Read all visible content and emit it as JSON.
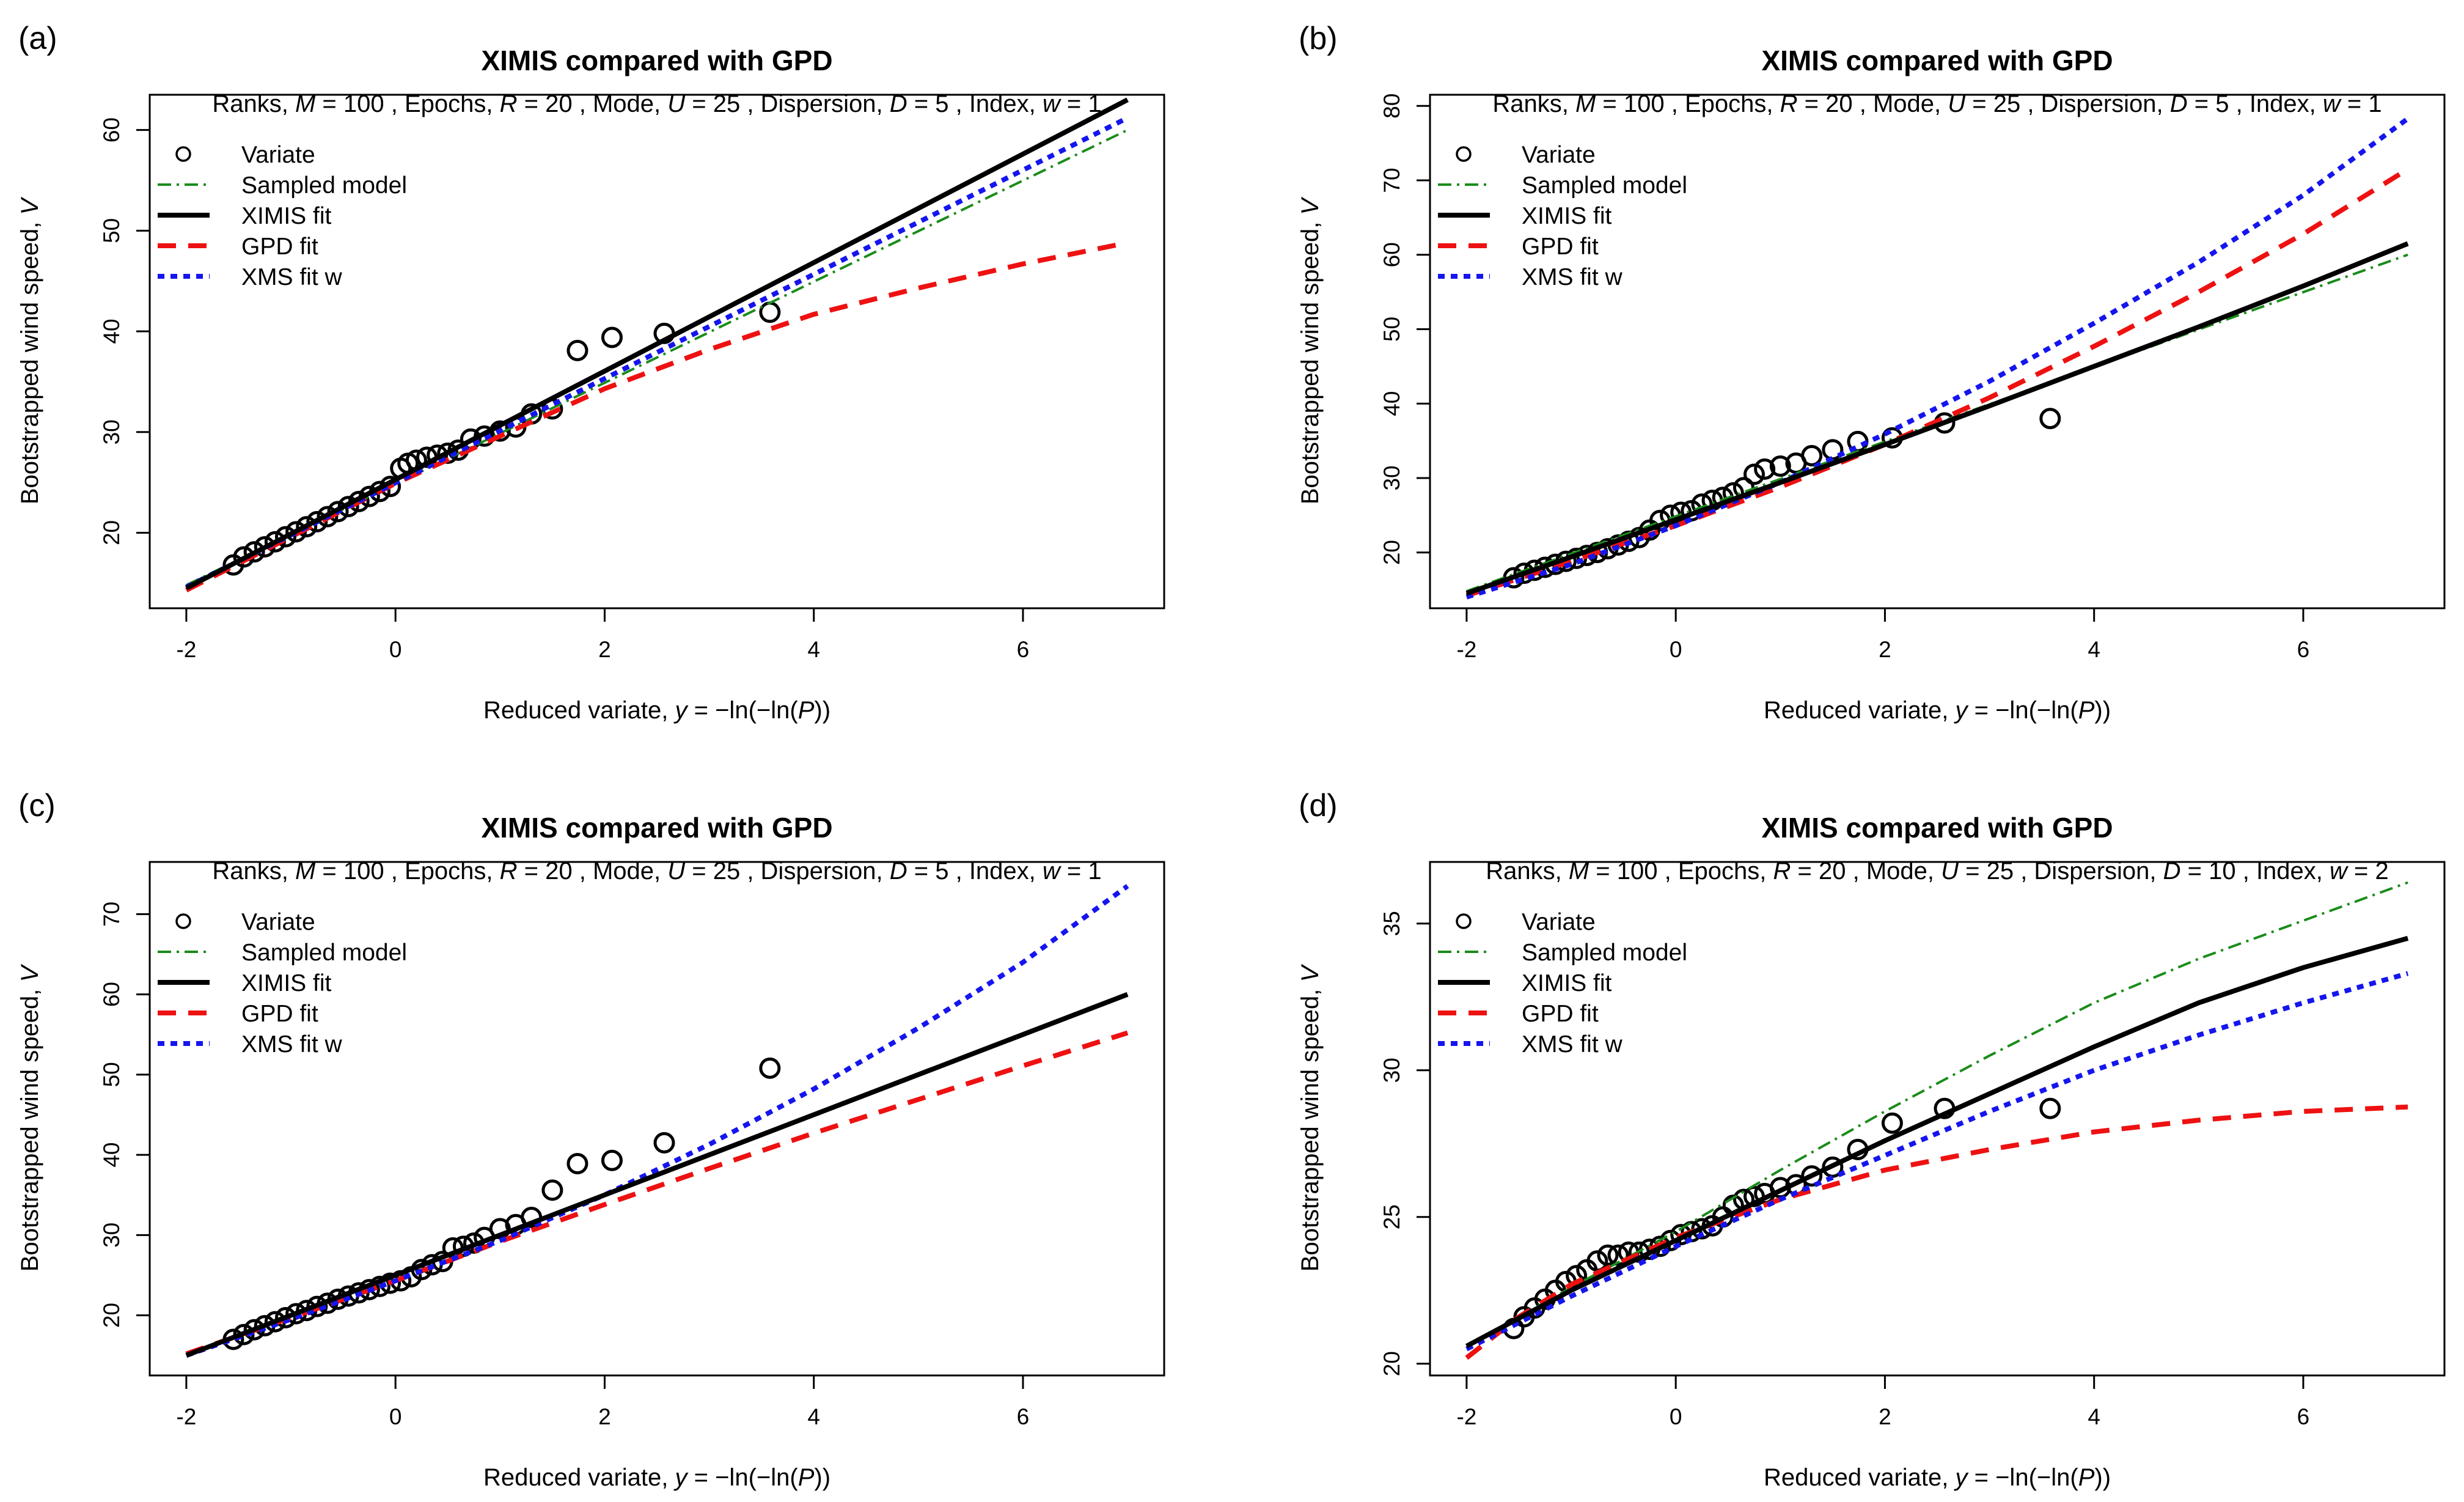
{
  "colors": {
    "variate": "#000000",
    "sampled_model": "#1a8c1a",
    "ximis_fit": "#000000",
    "gpd_fit": "#ee1111",
    "xms_fit": "#1515ee"
  },
  "chart_data": [
    {
      "type": "line",
      "panel_label": "(a)",
      "title": "XIMIS compared with GPD",
      "subtitle": {
        "ranks": "Ranks,",
        "M": "M",
        "M_value": "= 100 ,",
        "epochs": "Epochs,",
        "R": "R",
        "R_value": "= 20 ,",
        "mode": "Mode,",
        "U": "U",
        "U_value": "= 25 ,",
        "dispersion": "Dispersion,",
        "D": "D",
        "D_value": "= 5 ,",
        "index": "Index,",
        "w": "w",
        "w_value": "= 1"
      },
      "xlabel": {
        "prefix": "Reduced variate,",
        "var": "y",
        "eq": " = −ln(−ln(",
        "P": "P",
        "suffix": "))"
      },
      "ylabel": {
        "prefix": "Bootstrapped wind speed,",
        "var": "V"
      },
      "xlim": [
        -2.35,
        7.35
      ],
      "ylim": [
        12.5,
        63.5
      ],
      "xticks": [
        -2,
        0,
        2,
        4,
        6
      ],
      "yticks": [
        20,
        30,
        40,
        50,
        60
      ],
      "legend": [
        "Variate",
        "Sampled model",
        "XIMIS fit",
        "GPD fit",
        "XMS fit w"
      ],
      "series": [
        {
          "name": "Sampled model",
          "x": [
            -2,
            7
          ],
          "y": [
            14.8,
            60
          ]
        },
        {
          "name": "XIMIS fit",
          "x": [
            -2,
            7
          ],
          "y": [
            14.5,
            63
          ]
        },
        {
          "name": "GPD fit",
          "x": [
            -2,
            -1,
            0,
            1,
            2,
            3,
            4,
            5,
            6,
            7
          ],
          "y": [
            14.3,
            19.6,
            24.9,
            29.6,
            34.3,
            38.2,
            41.7,
            44.3,
            46.7,
            48.8
          ]
        },
        {
          "name": "XMS fit w",
          "x": [
            -2,
            7
          ],
          "y": [
            14.6,
            61.2
          ]
        }
      ],
      "points": {
        "name": "Variate",
        "x": [
          -1.55,
          -1.45,
          -1.35,
          -1.25,
          -1.15,
          -1.05,
          -0.95,
          -0.85,
          -0.75,
          -0.65,
          -0.55,
          -0.45,
          -0.35,
          -0.25,
          -0.15,
          -0.05,
          0.05,
          0.12,
          0.2,
          0.3,
          0.4,
          0.5,
          0.6,
          0.72,
          0.85,
          1.0,
          1.15,
          1.3,
          1.5,
          1.74,
          2.07,
          2.57,
          3.58
        ],
        "y": [
          16.8,
          17.6,
          18.1,
          18.6,
          19.1,
          19.6,
          20.1,
          20.6,
          21.1,
          21.6,
          22.1,
          22.6,
          23.1,
          23.6,
          24.1,
          24.6,
          26.4,
          26.9,
          27.2,
          27.5,
          27.7,
          27.9,
          28.2,
          29.3,
          29.6,
          30.1,
          30.5,
          31.8,
          32.3,
          38.1,
          39.4,
          39.8,
          41.9
        ]
      }
    },
    {
      "type": "line",
      "panel_label": "(b)",
      "title": "XIMIS compared with GPD",
      "subtitle": {
        "ranks": "Ranks,",
        "M": "M",
        "M_value": "= 100 ,",
        "epochs": "Epochs,",
        "R": "R",
        "R_value": "= 20 ,",
        "mode": "Mode,",
        "U": "U",
        "U_value": "= 25 ,",
        "dispersion": "Dispersion,",
        "D": "D",
        "D_value": "= 5 ,",
        "index": "Index,",
        "w": "w",
        "w_value": "= 1"
      },
      "xlabel": {
        "prefix": "Reduced variate,",
        "var": "y",
        "eq": " = −ln(−ln(",
        "P": "P",
        "suffix": "))"
      },
      "ylabel": {
        "prefix": "Bootstrapped wind speed,",
        "var": "V"
      },
      "xlim": [
        -2.35,
        7.35
      ],
      "ylim": [
        12.5,
        81.5
      ],
      "xticks": [
        -2,
        0,
        2,
        4,
        6
      ],
      "yticks": [
        20,
        30,
        40,
        50,
        60,
        70,
        80
      ],
      "legend": [
        "Variate",
        "Sampled model",
        "XIMIS fit",
        "GPD fit",
        "XMS fit w"
      ],
      "series": [
        {
          "name": "Sampled model",
          "x": [
            -2,
            7
          ],
          "y": [
            14.8,
            60
          ]
        },
        {
          "name": "XIMIS fit",
          "x": [
            -2,
            -1,
            0,
            1,
            2,
            3,
            4,
            5,
            6,
            7
          ],
          "y": [
            14.5,
            19.4,
            24.4,
            29.4,
            34.5,
            39.7,
            45.0,
            50.3,
            55.8,
            61.5
          ]
        },
        {
          "name": "GPD fit",
          "x": [
            -2,
            -1,
            0,
            1,
            2,
            3,
            4,
            5,
            6,
            7
          ],
          "y": [
            14.2,
            18.8,
            23.6,
            28.8,
            34.5,
            40.8,
            47.7,
            55.0,
            62.8,
            71.5
          ]
        },
        {
          "name": "XMS fit w",
          "x": [
            -2,
            -1,
            0,
            1,
            2,
            3,
            4,
            5,
            6,
            7
          ],
          "y": [
            14.0,
            18.4,
            23.6,
            29.4,
            35.9,
            43.0,
            50.8,
            59.0,
            68.0,
            78.3
          ]
        }
      ],
      "points": {
        "name": "Variate",
        "x": [
          -1.55,
          -1.45,
          -1.35,
          -1.25,
          -1.15,
          -1.05,
          -0.95,
          -0.85,
          -0.75,
          -0.65,
          -0.55,
          -0.45,
          -0.35,
          -0.25,
          -0.15,
          -0.05,
          0.05,
          0.15,
          0.25,
          0.35,
          0.45,
          0.55,
          0.65,
          0.75,
          0.85,
          1.0,
          1.15,
          1.3,
          1.5,
          1.74,
          2.07,
          2.57,
          3.58
        ],
        "y": [
          16.6,
          17.2,
          17.6,
          18.0,
          18.4,
          18.8,
          19.2,
          19.6,
          20.0,
          20.5,
          21.0,
          21.5,
          22.0,
          23.0,
          24.3,
          25.0,
          25.4,
          25.6,
          26.5,
          27.0,
          27.4,
          28.0,
          28.7,
          30.5,
          31.2,
          31.6,
          32.0,
          33.0,
          33.8,
          34.9,
          35.4,
          37.4,
          38.0
        ]
      }
    },
    {
      "type": "line",
      "panel_label": "(c)",
      "title": "XIMIS compared with GPD",
      "subtitle": {
        "ranks": "Ranks,",
        "M": "M",
        "M_value": "= 100 ,",
        "epochs": "Epochs,",
        "R": "R",
        "R_value": "= 20 ,",
        "mode": "Mode,",
        "U": "U",
        "U_value": "= 25 ,",
        "dispersion": "Dispersion,",
        "D": "D",
        "D_value": "= 5 ,",
        "index": "Index,",
        "w": "w",
        "w_value": "= 1"
      },
      "xlabel": {
        "prefix": "Reduced variate,",
        "var": "y",
        "eq": " = −ln(−ln(",
        "P": "P",
        "suffix": "))"
      },
      "ylabel": {
        "prefix": "Bootstrapped wind speed,",
        "var": "V"
      },
      "xlim": [
        -2.35,
        7.35
      ],
      "ylim": [
        12.5,
        76.5
      ],
      "xticks": [
        -2,
        0,
        2,
        4,
        6
      ],
      "yticks": [
        20,
        30,
        40,
        50,
        60,
        70
      ],
      "legend": [
        "Variate",
        "Sampled model",
        "XIMIS fit",
        "GPD fit",
        "XMS fit w"
      ],
      "series": [
        {
          "name": "XIMIS fit",
          "x": [
            -2,
            7
          ],
          "y": [
            15.0,
            60.0
          ]
        },
        {
          "name": "GPD fit",
          "x": [
            -2,
            -1,
            0,
            1,
            2,
            3,
            4,
            5,
            6,
            7
          ],
          "y": [
            15.2,
            19.7,
            24.3,
            29.2,
            33.8,
            38.3,
            42.7,
            46.9,
            51.1,
            55.2
          ]
        },
        {
          "name": "XMS fit w",
          "x": [
            -2,
            -1,
            0,
            1,
            2,
            3,
            4,
            5,
            6,
            7
          ],
          "y": [
            15.0,
            19.5,
            24.3,
            29.3,
            35.0,
            41.3,
            48.2,
            55.8,
            64.0,
            73.5
          ]
        }
      ],
      "points": {
        "name": "Variate",
        "x": [
          -1.55,
          -1.45,
          -1.35,
          -1.25,
          -1.15,
          -1.05,
          -0.95,
          -0.85,
          -0.75,
          -0.65,
          -0.55,
          -0.45,
          -0.35,
          -0.25,
          -0.15,
          -0.05,
          0.05,
          0.15,
          0.25,
          0.35,
          0.45,
          0.55,
          0.65,
          0.75,
          0.85,
          1.0,
          1.15,
          1.3,
          1.5,
          1.74,
          2.07,
          2.57,
          3.58
        ],
        "y": [
          17.0,
          17.6,
          18.2,
          18.7,
          19.2,
          19.7,
          20.2,
          20.6,
          21.1,
          21.5,
          22.0,
          22.4,
          22.8,
          23.2,
          23.6,
          24.0,
          24.3,
          24.8,
          25.7,
          26.3,
          26.7,
          28.4,
          28.6,
          29.0,
          29.7,
          30.8,
          31.3,
          32.2,
          35.6,
          38.9,
          39.3,
          41.5,
          50.8
        ]
      }
    },
    {
      "type": "line",
      "panel_label": "(d)",
      "title": "XIMIS compared with GPD",
      "subtitle": {
        "ranks": "Ranks,",
        "M": "M",
        "M_value": "= 100 ,",
        "epochs": "Epochs,",
        "R": "R",
        "R_value": "= 20 ,",
        "mode": "Mode,",
        "U": "U",
        "U_value": "= 25 ,",
        "dispersion": "Dispersion,",
        "D": "D",
        "D_value": "= 10 ,",
        "index": "Index,",
        "w": "w",
        "w_value": "= 2"
      },
      "xlabel": {
        "prefix": "Reduced variate,",
        "var": "y",
        "eq": " = −ln(−ln(",
        "P": "P",
        "suffix": "))"
      },
      "ylabel": {
        "prefix": "Bootstrapped wind speed,",
        "var": "V"
      },
      "xlim": [
        -2.35,
        7.35
      ],
      "ylim": [
        19.6,
        37.1
      ],
      "xticks": [
        -2,
        0,
        2,
        4,
        6
      ],
      "yticks": [
        20,
        25,
        30,
        35
      ],
      "legend": [
        "Variate",
        "Sampled model",
        "XIMIS fit",
        "GPD fit",
        "XMS fit w"
      ],
      "series": [
        {
          "name": "Sampled model",
          "x": [
            -2,
            -1,
            0,
            1,
            2,
            3,
            4,
            5,
            6,
            7
          ],
          "y": [
            20.6,
            22.6,
            24.5,
            26.6,
            28.6,
            30.5,
            32.3,
            33.8,
            35.1,
            36.4
          ]
        },
        {
          "name": "XIMIS fit",
          "x": [
            -2,
            -1,
            0,
            1,
            2,
            3,
            4,
            5,
            6,
            7
          ],
          "y": [
            20.6,
            22.5,
            24.2,
            25.9,
            27.6,
            29.2,
            30.8,
            32.3,
            33.5,
            34.5
          ]
        },
        {
          "name": "GPD fit",
          "x": [
            -2,
            -1.5,
            -1,
            0,
            1,
            2,
            3,
            4,
            5,
            6,
            7
          ],
          "y": [
            20.2,
            21.6,
            22.7,
            24.3,
            25.6,
            26.6,
            27.3,
            27.9,
            28.3,
            28.6,
            28.75
          ]
        },
        {
          "name": "XMS fit w",
          "x": [
            -2,
            -1,
            0,
            1,
            2,
            3,
            4,
            5,
            6,
            7
          ],
          "y": [
            20.5,
            22.3,
            24.0,
            25.6,
            27.1,
            28.6,
            30.0,
            31.2,
            32.3,
            33.3
          ]
        }
      ],
      "points": {
        "name": "Variate",
        "x": [
          -1.55,
          -1.45,
          -1.35,
          -1.25,
          -1.15,
          -1.05,
          -0.95,
          -0.85,
          -0.75,
          -0.65,
          -0.55,
          -0.45,
          -0.35,
          -0.25,
          -0.15,
          -0.05,
          0.05,
          0.15,
          0.25,
          0.35,
          0.45,
          0.55,
          0.65,
          0.75,
          0.85,
          1.0,
          1.15,
          1.3,
          1.5,
          1.74,
          2.07,
          2.57,
          3.58
        ],
        "y": [
          21.2,
          21.6,
          21.9,
          22.2,
          22.5,
          22.8,
          23.0,
          23.2,
          23.5,
          23.7,
          23.7,
          23.8,
          23.8,
          23.9,
          24.0,
          24.2,
          24.4,
          24.5,
          24.6,
          24.7,
          25.0,
          25.4,
          25.6,
          25.7,
          25.8,
          26.0,
          26.1,
          26.4,
          26.7,
          27.3,
          28.2,
          28.7,
          28.7
        ]
      }
    }
  ]
}
